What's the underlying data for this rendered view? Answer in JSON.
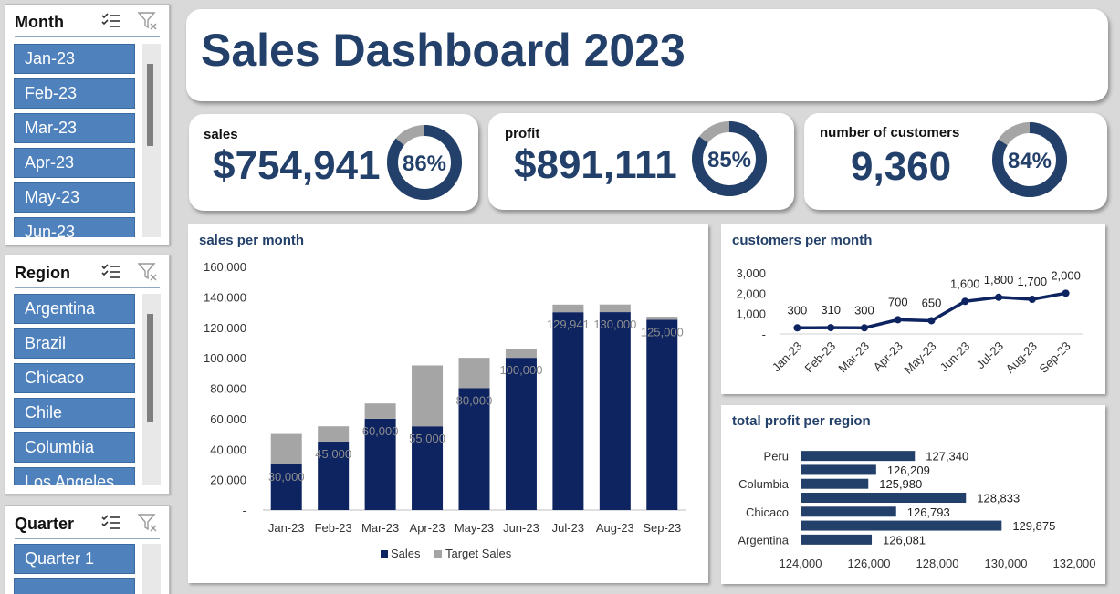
{
  "slicers": {
    "month": {
      "title": "Month",
      "items": [
        "Jan-23",
        "Feb-23",
        "Mar-23",
        "Apr-23",
        "May-23",
        "Jun-23"
      ]
    },
    "region": {
      "title": "Region",
      "items": [
        "Argentina",
        "Brazil",
        "Chicaco",
        "Chile",
        "Columbia",
        "Los Angeles"
      ]
    },
    "quarter": {
      "title": "Quarter",
      "items": [
        "Quarter 1"
      ]
    }
  },
  "dashboard": {
    "title": "Sales Dashboard 2023"
  },
  "kpis": {
    "sales": {
      "label": "sales",
      "value": "$754,941",
      "percent_text": "86%",
      "percent": 86
    },
    "profit": {
      "label": "profit",
      "value": "$891,111",
      "percent_text": "85%",
      "percent": 85
    },
    "customers": {
      "label": "number of customers",
      "value": "9,360",
      "percent_text": "84%",
      "percent": 84
    }
  },
  "colors": {
    "navy": "#0d2461",
    "dark_blue": "#23406a",
    "grey": "#a5a5a5",
    "slicer_blue": "#4f81bd"
  },
  "chart_data": [
    {
      "type": "bar",
      "stacked": true,
      "title": "sales per month",
      "categories": [
        "Jan-23",
        "Feb-23",
        "Mar-23",
        "Apr-23",
        "May-23",
        "Jun-23",
        "Jul-23",
        "Aug-23",
        "Sep-23"
      ],
      "series": [
        {
          "name": "Sales",
          "values": [
            30000,
            45000,
            60000,
            55000,
            80000,
            100000,
            129941,
            130000,
            125000
          ],
          "labels": [
            "30,000",
            "45,000",
            "60,000",
            "55,000",
            "80,000",
            "100,000",
            "129,941",
            "130,000",
            "125,000"
          ]
        },
        {
          "name": "Target Sales",
          "values": [
            20000,
            10000,
            10000,
            40000,
            20000,
            6000,
            5000,
            5000,
            2000
          ]
        }
      ],
      "ylim": [
        0,
        160000
      ],
      "yticks": [
        "-",
        "20,000",
        "40,000",
        "60,000",
        "80,000",
        "100,000",
        "120,000",
        "140,000",
        "160,000"
      ],
      "legend": "bottom"
    },
    {
      "type": "line",
      "title": "customers per month",
      "categories": [
        "Jan-23",
        "Feb-23",
        "Mar-23",
        "Apr-23",
        "May-23",
        "Jun-23",
        "Jul-23",
        "Aug-23",
        "Sep-23"
      ],
      "values": [
        300,
        310,
        300,
        700,
        650,
        1600,
        1800,
        1700,
        2000
      ],
      "labels": [
        "300",
        "310",
        "300",
        "700",
        "650",
        "1,600",
        "1,800",
        "1,700",
        "2,000"
      ],
      "ylim": [
        0,
        3000
      ],
      "yticks": [
        "-",
        "1,000",
        "2,000",
        "3,000"
      ]
    },
    {
      "type": "bar",
      "orientation": "horizontal",
      "title": "total profit per region",
      "categories": [
        "Argentina",
        "",
        "Chicaco",
        "",
        "Columbia",
        "",
        "Peru"
      ],
      "values": [
        126081,
        129875,
        126793,
        128833,
        125980,
        126209,
        127340
      ],
      "labels": [
        "126,081",
        "129,875",
        "126,793",
        "128,833",
        "125,980",
        "126,209",
        "127,340"
      ],
      "xlim": [
        124000,
        132000
      ],
      "xticks": [
        "124,000",
        "126,000",
        "128,000",
        "130,000",
        "132,000"
      ]
    }
  ]
}
